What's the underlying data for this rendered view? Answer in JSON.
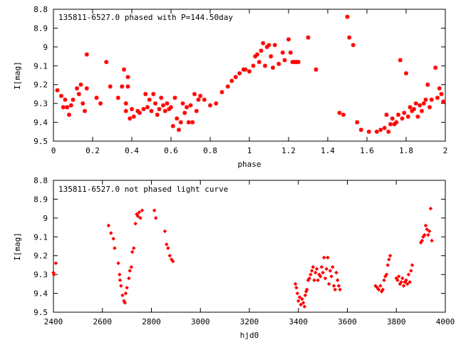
{
  "chart_data": [
    {
      "type": "scatter",
      "title": "135811-6527.0 phased with P=144.50day",
      "xlabel": "phase",
      "ylabel": "I[mag]",
      "xlim": [
        0,
        2
      ],
      "ylim": [
        8.8,
        9.5
      ],
      "y_inverted": true,
      "grid": false,
      "marker_color": "#ff0000",
      "xticks": [
        "0",
        "0.2",
        "0.4",
        "0.6",
        "0.8",
        "1",
        "1.2",
        "1.4",
        "1.6",
        "1.8",
        "2"
      ],
      "yticks": [
        "8.8",
        "8.9",
        "9",
        "9.1",
        "9.2",
        "9.3",
        "9.4",
        "9.5"
      ],
      "points": [
        [
          0.02,
          9.23
        ],
        [
          0.04,
          9.26
        ],
        [
          0.05,
          9.32
        ],
        [
          0.06,
          9.28
        ],
        [
          0.07,
          9.32
        ],
        [
          0.08,
          9.36
        ],
        [
          0.09,
          9.31
        ],
        [
          0.1,
          9.28
        ],
        [
          0.12,
          9.22
        ],
        [
          0.13,
          9.25
        ],
        [
          0.14,
          9.2
        ],
        [
          0.15,
          9.3
        ],
        [
          0.16,
          9.34
        ],
        [
          0.17,
          9.04
        ],
        [
          0.17,
          9.22
        ],
        [
          0.22,
          9.27
        ],
        [
          0.24,
          9.3
        ],
        [
          0.27,
          9.08
        ],
        [
          0.29,
          9.21
        ],
        [
          0.33,
          9.27
        ],
        [
          0.35,
          9.21
        ],
        [
          0.36,
          9.12
        ],
        [
          0.37,
          9.3
        ],
        [
          0.37,
          9.34
        ],
        [
          0.38,
          9.16
        ],
        [
          0.38,
          9.21
        ],
        [
          0.39,
          9.38
        ],
        [
          0.4,
          9.33
        ],
        [
          0.41,
          9.37
        ],
        [
          0.43,
          9.34
        ],
        [
          0.44,
          9.35
        ],
        [
          0.46,
          9.33
        ],
        [
          0.47,
          9.25
        ],
        [
          0.48,
          9.32
        ],
        [
          0.49,
          9.28
        ],
        [
          0.5,
          9.34
        ],
        [
          0.51,
          9.25
        ],
        [
          0.52,
          9.3
        ],
        [
          0.53,
          9.36
        ],
        [
          0.54,
          9.33
        ],
        [
          0.55,
          9.27
        ],
        [
          0.56,
          9.31
        ],
        [
          0.57,
          9.34
        ],
        [
          0.58,
          9.3
        ],
        [
          0.59,
          9.33
        ],
        [
          0.6,
          9.32
        ],
        [
          0.61,
          9.42
        ],
        [
          0.62,
          9.27
        ],
        [
          0.63,
          9.38
        ],
        [
          0.64,
          9.44
        ],
        [
          0.65,
          9.4
        ],
        [
          0.66,
          9.3
        ],
        [
          0.67,
          9.35
        ],
        [
          0.68,
          9.32
        ],
        [
          0.69,
          9.4
        ],
        [
          0.7,
          9.31
        ],
        [
          0.71,
          9.4
        ],
        [
          0.72,
          9.25
        ],
        [
          0.73,
          9.34
        ],
        [
          0.74,
          9.28
        ],
        [
          0.75,
          9.26
        ],
        [
          0.77,
          9.28
        ],
        [
          0.8,
          9.31
        ],
        [
          0.83,
          9.3
        ],
        [
          0.86,
          9.24
        ],
        [
          0.89,
          9.21
        ],
        [
          0.91,
          9.18
        ],
        [
          0.93,
          9.16
        ],
        [
          0.95,
          9.14
        ],
        [
          0.97,
          9.12
        ],
        [
          0.98,
          9.12
        ],
        [
          1.0,
          9.13
        ],
        [
          1.02,
          9.1
        ],
        [
          1.03,
          9.05
        ],
        [
          1.04,
          9.04
        ],
        [
          1.05,
          9.08
        ],
        [
          1.06,
          9.02
        ],
        [
          1.07,
          8.98
        ],
        [
          1.08,
          9.1
        ],
        [
          1.09,
          9.0
        ],
        [
          1.1,
          8.99
        ],
        [
          1.11,
          9.05
        ],
        [
          1.12,
          9.11
        ],
        [
          1.13,
          8.99
        ],
        [
          1.15,
          9.09
        ],
        [
          1.17,
          9.03
        ],
        [
          1.18,
          9.07
        ],
        [
          1.2,
          8.96
        ],
        [
          1.21,
          9.03
        ],
        [
          1.22,
          9.08
        ],
        [
          1.23,
          9.08
        ],
        [
          1.24,
          9.08
        ],
        [
          1.25,
          9.08
        ],
        [
          1.3,
          8.95
        ],
        [
          1.34,
          9.12
        ],
        [
          1.46,
          9.35
        ],
        [
          1.48,
          9.36
        ],
        [
          1.5,
          8.84
        ],
        [
          1.51,
          8.95
        ],
        [
          1.53,
          8.99
        ],
        [
          1.55,
          9.4
        ],
        [
          1.57,
          9.44
        ],
        [
          1.61,
          9.45
        ],
        [
          1.65,
          9.45
        ],
        [
          1.67,
          9.44
        ],
        [
          1.69,
          9.43
        ],
        [
          1.7,
          9.36
        ],
        [
          1.71,
          9.45
        ],
        [
          1.72,
          9.41
        ],
        [
          1.73,
          9.38
        ],
        [
          1.74,
          9.41
        ],
        [
          1.75,
          9.4
        ],
        [
          1.76,
          9.36
        ],
        [
          1.77,
          9.07
        ],
        [
          1.78,
          9.38
        ],
        [
          1.79,
          9.35
        ],
        [
          1.8,
          9.14
        ],
        [
          1.81,
          9.37
        ],
        [
          1.82,
          9.32
        ],
        [
          1.83,
          9.34
        ],
        [
          1.84,
          9.33
        ],
        [
          1.85,
          9.3
        ],
        [
          1.86,
          9.37
        ],
        [
          1.87,
          9.31
        ],
        [
          1.88,
          9.34
        ],
        [
          1.89,
          9.3
        ],
        [
          1.9,
          9.28
        ],
        [
          1.91,
          9.2
        ],
        [
          1.92,
          9.32
        ],
        [
          1.93,
          9.28
        ],
        [
          1.95,
          9.11
        ],
        [
          1.96,
          9.27
        ],
        [
          1.97,
          9.22
        ],
        [
          1.98,
          9.25
        ],
        [
          1.99,
          9.29
        ]
      ]
    },
    {
      "type": "scatter",
      "title": "135811-6527.0 not phased light curve",
      "xlabel": "hjd0",
      "ylabel": "I[mag]",
      "xlim": [
        2400,
        4000
      ],
      "ylim": [
        8.8,
        9.5
      ],
      "y_inverted": true,
      "grid": false,
      "marker_color": "#ff0000",
      "xticks": [
        "2400",
        "2600",
        "2800",
        "3000",
        "3200",
        "3400",
        "3600",
        "3800",
        "4000"
      ],
      "yticks": [
        "8.8",
        "8.9",
        "9",
        "9.1",
        "9.2",
        "9.3",
        "9.4",
        "9.5"
      ],
      "points": [
        [
          2400,
          9.29
        ],
        [
          2402,
          9.3
        ],
        [
          2410,
          9.24
        ],
        [
          2625,
          9.04
        ],
        [
          2635,
          9.08
        ],
        [
          2645,
          9.11
        ],
        [
          2650,
          9.16
        ],
        [
          2665,
          9.24
        ],
        [
          2670,
          9.3
        ],
        [
          2672,
          9.33
        ],
        [
          2676,
          9.36
        ],
        [
          2682,
          9.41
        ],
        [
          2688,
          9.44
        ],
        [
          2692,
          9.45
        ],
        [
          2695,
          9.4
        ],
        [
          2700,
          9.37
        ],
        [
          2708,
          9.32
        ],
        [
          2712,
          9.28
        ],
        [
          2718,
          9.26
        ],
        [
          2722,
          9.18
        ],
        [
          2728,
          9.16
        ],
        [
          2735,
          9.03
        ],
        [
          2740,
          8.98
        ],
        [
          2745,
          8.99
        ],
        [
          2750,
          8.97
        ],
        [
          2755,
          9.0
        ],
        [
          2762,
          8.96
        ],
        [
          2812,
          8.96
        ],
        [
          2818,
          9.0
        ],
        [
          2855,
          9.07
        ],
        [
          2862,
          9.14
        ],
        [
          2868,
          9.16
        ],
        [
          2875,
          9.2
        ],
        [
          2882,
          9.22
        ],
        [
          2888,
          9.23
        ],
        [
          3388,
          9.35
        ],
        [
          3392,
          9.37
        ],
        [
          3396,
          9.4
        ],
        [
          3400,
          9.44
        ],
        [
          3405,
          9.42
        ],
        [
          3410,
          9.46
        ],
        [
          3415,
          9.43
        ],
        [
          3420,
          9.45
        ],
        [
          3425,
          9.47
        ],
        [
          3428,
          9.41
        ],
        [
          3432,
          9.39
        ],
        [
          3435,
          9.38
        ],
        [
          3440,
          9.33
        ],
        [
          3445,
          9.32
        ],
        [
          3450,
          9.3
        ],
        [
          3455,
          9.28
        ],
        [
          3460,
          9.26
        ],
        [
          3465,
          9.33
        ],
        [
          3470,
          9.29
        ],
        [
          3475,
          9.27
        ],
        [
          3480,
          9.33
        ],
        [
          3485,
          9.3
        ],
        [
          3490,
          9.31
        ],
        [
          3495,
          9.26
        ],
        [
          3500,
          9.29
        ],
        [
          3505,
          9.21
        ],
        [
          3510,
          9.32
        ],
        [
          3515,
          9.27
        ],
        [
          3520,
          9.21
        ],
        [
          3525,
          9.35
        ],
        [
          3530,
          9.28
        ],
        [
          3535,
          9.31
        ],
        [
          3540,
          9.26
        ],
        [
          3545,
          9.36
        ],
        [
          3550,
          9.38
        ],
        [
          3555,
          9.29
        ],
        [
          3560,
          9.33
        ],
        [
          3565,
          9.36
        ],
        [
          3570,
          9.38
        ],
        [
          3715,
          9.36
        ],
        [
          3722,
          9.37
        ],
        [
          3728,
          9.38
        ],
        [
          3735,
          9.36
        ],
        [
          3740,
          9.39
        ],
        [
          3745,
          9.38
        ],
        [
          3750,
          9.33
        ],
        [
          3755,
          9.31
        ],
        [
          3760,
          9.3
        ],
        [
          3765,
          9.25
        ],
        [
          3770,
          9.22
        ],
        [
          3775,
          9.2
        ],
        [
          3800,
          9.32
        ],
        [
          3805,
          9.33
        ],
        [
          3810,
          9.31
        ],
        [
          3815,
          9.35
        ],
        [
          3820,
          9.34
        ],
        [
          3825,
          9.32
        ],
        [
          3830,
          9.36
        ],
        [
          3835,
          9.34
        ],
        [
          3840,
          9.33
        ],
        [
          3845,
          9.35
        ],
        [
          3850,
          9.3
        ],
        [
          3855,
          9.34
        ],
        [
          3860,
          9.28
        ],
        [
          3865,
          9.25
        ],
        [
          3900,
          9.13
        ],
        [
          3905,
          9.12
        ],
        [
          3910,
          9.1
        ],
        [
          3915,
          9.09
        ],
        [
          3920,
          9.04
        ],
        [
          3925,
          9.06
        ],
        [
          3930,
          9.09
        ],
        [
          3935,
          9.07
        ],
        [
          3940,
          8.95
        ],
        [
          3945,
          9.12
        ]
      ]
    }
  ]
}
